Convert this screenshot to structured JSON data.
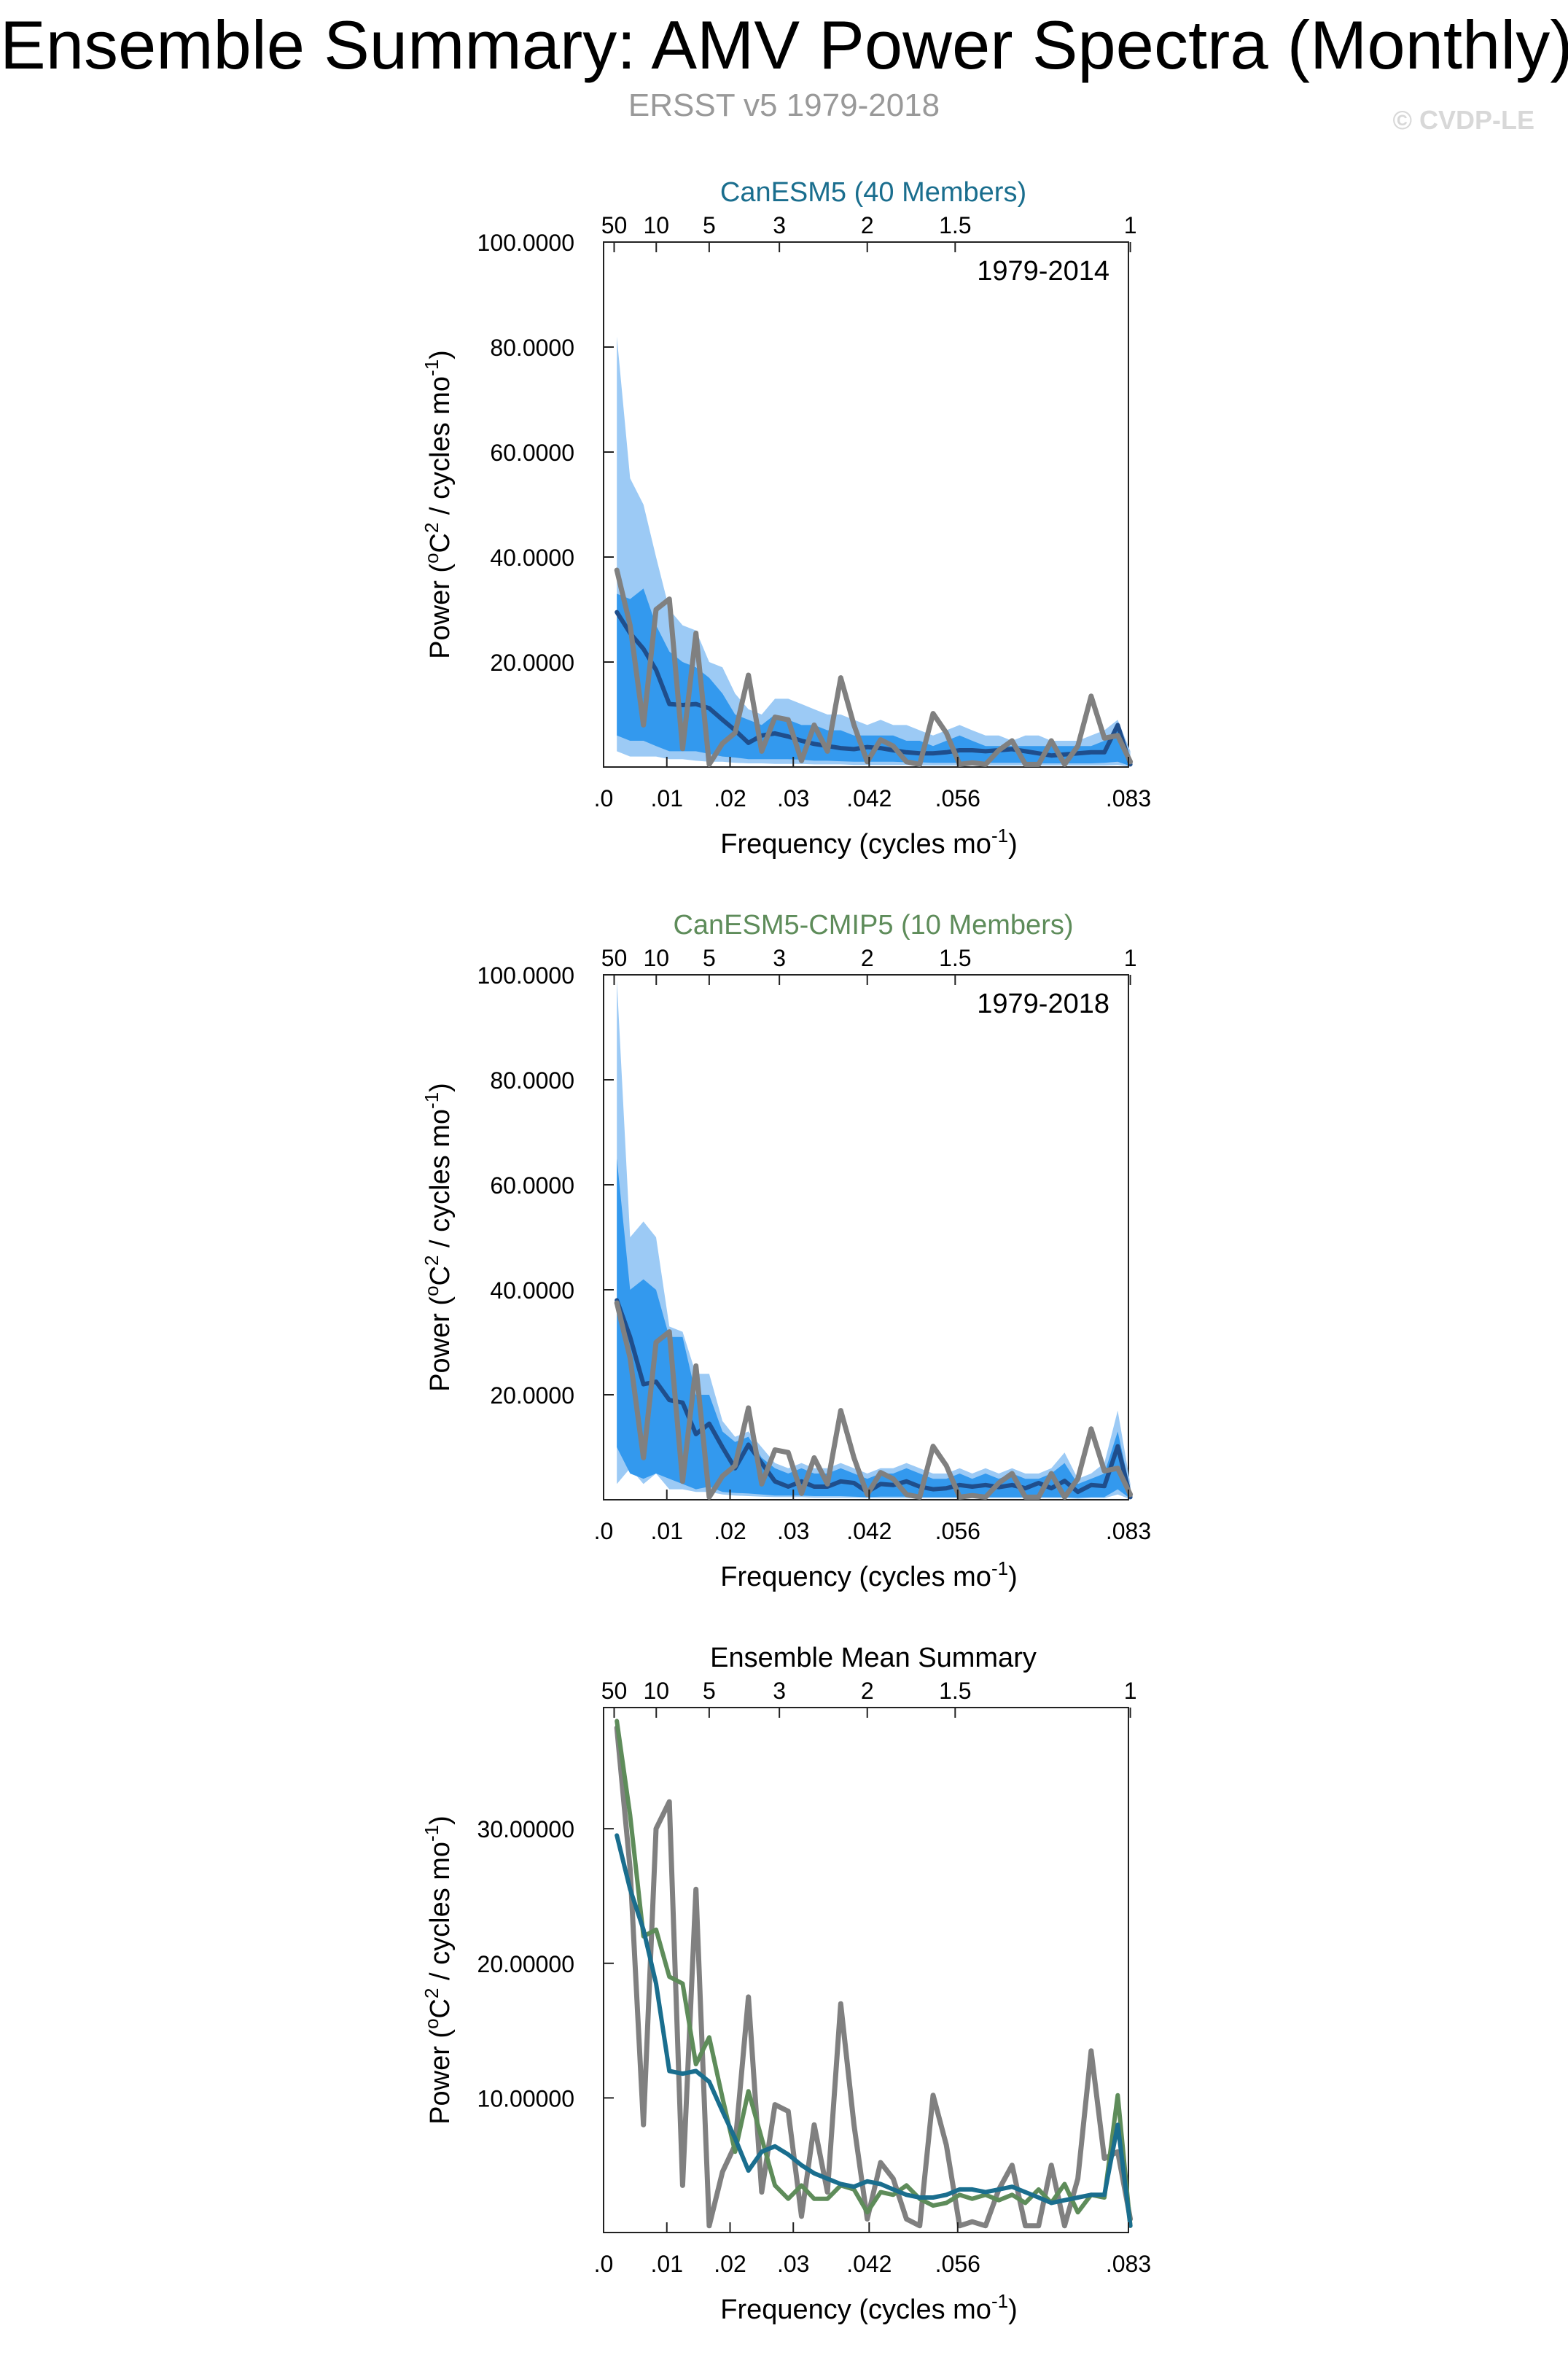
{
  "header": {
    "title": "Ensemble Summary: AMV Power Spectra (Monthly)",
    "subtitle": "ERSST v5 1979-2018",
    "watermark": "© CVDP-LE"
  },
  "colors": {
    "obs": "#808080",
    "mean_line": "#1f4e8c",
    "band_outer": "#9ccaf5",
    "band_inner": "#3399ee",
    "canesm5": "#1a6e8e",
    "canesm5_cmip5": "#5e8c5a"
  },
  "chart_data": [
    {
      "id": "canesm5",
      "type": "area",
      "title": "CanESM5 (40 Members)",
      "title_color": "#1a6e8e",
      "period": "1979-2014",
      "xlabel": "Frequency (cycles mo",
      "xlabel_sup": "-1",
      "ylabel": "Power (",
      "ylabel_sup_o": "o",
      "ylabel_mid": "C",
      "ylabel_sup_2": "2",
      "ylabel_end": " / cycles mo",
      "ylabel_sup_m1": "-1",
      "ylabel_close": ")",
      "xlim": [
        0,
        0.083
      ],
      "ylim": [
        0,
        100
      ],
      "yticks": [
        20,
        40,
        60,
        80,
        100
      ],
      "ytick_labels": [
        "20.0000",
        "40.0000",
        "60.0000",
        "80.0000",
        "100.0000"
      ],
      "xticks": [
        0,
        0.01,
        0.02,
        0.03,
        0.042,
        0.056,
        0.083
      ],
      "xtick_labels": [
        ".0",
        ".01",
        ".02",
        ".03",
        ".042",
        ".056",
        ".083"
      ],
      "top_ticks": [
        0.00167,
        0.00833,
        0.0167,
        0.0278,
        0.0417,
        0.0556,
        0.0833
      ],
      "top_tick_labels": [
        "50",
        "10",
        "5",
        "3",
        "2",
        "1.5",
        "1"
      ],
      "x": [
        0.0021,
        0.0042,
        0.0063,
        0.0083,
        0.0104,
        0.0125,
        0.0146,
        0.0167,
        0.0188,
        0.0208,
        0.0229,
        0.025,
        0.0271,
        0.0292,
        0.0313,
        0.0333,
        0.0354,
        0.0375,
        0.0396,
        0.0417,
        0.0438,
        0.0458,
        0.0479,
        0.05,
        0.0521,
        0.0542,
        0.0563,
        0.0583,
        0.0604,
        0.0625,
        0.0646,
        0.0667,
        0.0688,
        0.0708,
        0.0729,
        0.075,
        0.0771,
        0.0792,
        0.0813,
        0.0833
      ],
      "series": [
        {
          "name": "outer_upper",
          "values": [
            82,
            55,
            50,
            40,
            30,
            27,
            26,
            20,
            19,
            14,
            11,
            10,
            13,
            13,
            12,
            11,
            10,
            10,
            9,
            8,
            9,
            8,
            8,
            7,
            6,
            7,
            8,
            7,
            6,
            6,
            5,
            6,
            6,
            5,
            5,
            5,
            6,
            7,
            9,
            3
          ]
        },
        {
          "name": "inner_upper",
          "values": [
            33,
            32,
            34,
            27,
            22,
            20,
            19,
            17,
            14,
            10,
            9,
            8,
            10,
            9,
            8,
            8,
            7,
            7,
            6,
            6,
            6,
            6,
            5,
            5,
            4,
            5,
            6,
            5,
            4,
            4,
            4,
            4,
            4,
            4,
            4,
            4,
            4,
            5,
            7,
            2
          ]
        },
        {
          "name": "ensemble_mean",
          "values": [
            29.5,
            25.5,
            22.5,
            18.5,
            12,
            11.8,
            12,
            11.2,
            9,
            7,
            4.6,
            6,
            6.4,
            5.8,
            5,
            4.4,
            4,
            3.6,
            3.4,
            3.8,
            3.6,
            3.2,
            2.8,
            2.6,
            2.6,
            2.8,
            3.2,
            3.2,
            3,
            3.2,
            3.4,
            3,
            2.6,
            2.2,
            2.4,
            2.6,
            2.8,
            2.8,
            8,
            0.5
          ]
        },
        {
          "name": "inner_lower",
          "values": [
            6,
            5,
            5,
            4,
            3,
            3,
            3,
            2.5,
            2,
            1.8,
            1.5,
            1.5,
            1.5,
            1.5,
            1.4,
            1.2,
            1.2,
            1.1,
            1,
            1,
            1,
            1,
            0.9,
            0.9,
            0.8,
            0.8,
            0.8,
            0.8,
            0.8,
            0.8,
            0.8,
            0.8,
            0.7,
            0.7,
            0.7,
            0.7,
            0.7,
            0.8,
            1,
            0.2
          ]
        },
        {
          "name": "outer_lower",
          "values": [
            3,
            2,
            2,
            2,
            1.5,
            1.5,
            1.2,
            1,
            1,
            0.8,
            0.7,
            0.7,
            0.6,
            0.6,
            0.6,
            0.5,
            0.5,
            0.5,
            0.4,
            0.4,
            0.4,
            0.4,
            0.4,
            0.3,
            0.3,
            0.3,
            0.3,
            0.3,
            0.3,
            0.3,
            0.3,
            0.3,
            0.3,
            0.3,
            0.3,
            0.3,
            0.3,
            0.3,
            0.4,
            0.1
          ]
        },
        {
          "name": "ERSST v5",
          "values": [
            37.5,
            27,
            8,
            30,
            32,
            3.5,
            25.5,
            0.5,
            4.5,
            6.5,
            17.5,
            3,
            9.5,
            9,
            1.2,
            8,
            3,
            17,
            8,
            1,
            5.2,
            4,
            1,
            0.5,
            10.2,
            6.5,
            0.5,
            0.8,
            0.5,
            3.2,
            5,
            0.5,
            0.5,
            5,
            0.5,
            4,
            13.5,
            5.5,
            6,
            1
          ]
        }
      ]
    },
    {
      "id": "canesm5_cmip5",
      "type": "area",
      "title": "CanESM5-CMIP5 (10 Members)",
      "title_color": "#5e8c5a",
      "period": "1979-2018",
      "xlabel": "Frequency (cycles mo",
      "xlabel_sup": "-1",
      "ylabel": "Power (",
      "ylabel_sup_o": "o",
      "ylabel_mid": "C",
      "ylabel_sup_2": "2",
      "ylabel_end": " / cycles mo",
      "ylabel_sup_m1": "-1",
      "ylabel_close": ")",
      "xlim": [
        0,
        0.083
      ],
      "ylim": [
        0,
        100
      ],
      "yticks": [
        20,
        40,
        60,
        80,
        100
      ],
      "ytick_labels": [
        "20.0000",
        "40.0000",
        "60.0000",
        "80.0000",
        "100.0000"
      ],
      "xticks": [
        0,
        0.01,
        0.02,
        0.03,
        0.042,
        0.056,
        0.083
      ],
      "xtick_labels": [
        ".0",
        ".01",
        ".02",
        ".03",
        ".042",
        ".056",
        ".083"
      ],
      "top_ticks": [
        0.00167,
        0.00833,
        0.0167,
        0.0278,
        0.0417,
        0.0556,
        0.0833
      ],
      "top_tick_labels": [
        "50",
        "10",
        "5",
        "3",
        "2",
        "1.5",
        "1"
      ],
      "x": [
        0.0021,
        0.0042,
        0.0063,
        0.0083,
        0.0104,
        0.0125,
        0.0146,
        0.0167,
        0.0188,
        0.0208,
        0.0229,
        0.025,
        0.0271,
        0.0292,
        0.0313,
        0.0333,
        0.0354,
        0.0375,
        0.0396,
        0.0417,
        0.0438,
        0.0458,
        0.0479,
        0.05,
        0.0521,
        0.0542,
        0.0563,
        0.0583,
        0.0604,
        0.0625,
        0.0646,
        0.0667,
        0.0688,
        0.0708,
        0.0729,
        0.075,
        0.0771,
        0.0792,
        0.0813,
        0.0833
      ],
      "series": [
        {
          "name": "outer_upper",
          "values": [
            99,
            50,
            53,
            50,
            33,
            32,
            24,
            24,
            15,
            12,
            13,
            10,
            7,
            6,
            7,
            6,
            6,
            7,
            6,
            5,
            6,
            6,
            7,
            6,
            5,
            5,
            6,
            5,
            6,
            5,
            6,
            5,
            5,
            6,
            9,
            4,
            5,
            7,
            17,
            3
          ]
        },
        {
          "name": "inner_upper",
          "values": [
            65,
            40,
            42,
            40,
            31,
            31,
            20,
            20,
            13,
            11,
            12,
            8,
            6,
            5,
            6,
            5,
            5,
            6,
            5,
            4,
            5,
            5,
            6,
            5,
            4,
            4,
            5,
            4,
            5,
            4,
            5,
            4,
            4,
            5,
            7,
            3,
            4,
            5,
            13,
            2
          ]
        },
        {
          "name": "ensemble_mean",
          "values": [
            38,
            31,
            22,
            22.5,
            19,
            18.5,
            12.5,
            14.5,
            10,
            6,
            10.5,
            7,
            3.5,
            2.5,
            3.5,
            2.5,
            2.5,
            3.5,
            3.2,
            1.5,
            3,
            2.8,
            3.5,
            2.5,
            2,
            2.2,
            2.8,
            2.5,
            2.8,
            2.4,
            2.8,
            2.2,
            3.2,
            2.2,
            3.6,
            1.5,
            2.8,
            2.6,
            10.2,
            0.5
          ]
        },
        {
          "name": "inner_lower",
          "values": [
            10,
            5,
            4,
            5,
            4,
            3,
            2,
            2.5,
            1.5,
            1.3,
            1.2,
            1,
            0.8,
            0.8,
            0.8,
            0.7,
            0.7,
            0.7,
            0.6,
            0.5,
            0.6,
            0.6,
            0.6,
            0.5,
            0.5,
            0.5,
            0.5,
            0.5,
            0.5,
            0.5,
            0.5,
            0.5,
            0.5,
            0.5,
            0.5,
            0.4,
            0.5,
            0.5,
            2,
            0.2
          ]
        },
        {
          "name": "outer_lower",
          "values": [
            3,
            6,
            3,
            5,
            2,
            2,
            1.5,
            1.5,
            1,
            0.8,
            0.7,
            0.6,
            0.5,
            0.5,
            0.5,
            0.4,
            0.4,
            0.4,
            0.4,
            0.3,
            0.3,
            0.3,
            0.3,
            0.3,
            0.3,
            0.3,
            0.3,
            0.3,
            0.3,
            0.3,
            0.3,
            0.3,
            0.3,
            0.3,
            0.3,
            0.2,
            0.3,
            0.3,
            1,
            0.1
          ]
        },
        {
          "name": "ERSST v5",
          "values": [
            37.5,
            27,
            8,
            30,
            32,
            3.5,
            25.5,
            0.5,
            4.5,
            6.5,
            17.5,
            3,
            9.5,
            9,
            1.2,
            8,
            3,
            17,
            8,
            1,
            5.2,
            4,
            1,
            0.5,
            10.2,
            6.5,
            0.5,
            0.8,
            0.5,
            3.2,
            5,
            0.5,
            0.5,
            5,
            0.5,
            4,
            13.5,
            5.5,
            6,
            1
          ]
        }
      ]
    },
    {
      "id": "ensemble_mean_summary",
      "type": "line",
      "title": "Ensemble Mean Summary",
      "title_color": "#000000",
      "period": "",
      "xlabel": "Frequency (cycles mo",
      "xlabel_sup": "-1",
      "ylabel": "Power (",
      "ylabel_sup_o": "o",
      "ylabel_mid": "C",
      "ylabel_sup_2": "2",
      "ylabel_end": " / cycles mo",
      "ylabel_sup_m1": "-1",
      "ylabel_close": ")",
      "xlim": [
        0,
        0.083
      ],
      "ylim": [
        0,
        39
      ],
      "yticks": [
        10,
        20,
        30
      ],
      "ytick_labels": [
        "10.00000",
        "20.00000",
        "30.00000"
      ],
      "xticks": [
        0,
        0.01,
        0.02,
        0.03,
        0.042,
        0.056,
        0.083
      ],
      "xtick_labels": [
        ".0",
        ".01",
        ".02",
        ".03",
        ".042",
        ".056",
        ".083"
      ],
      "top_ticks": [
        0.00167,
        0.00833,
        0.0167,
        0.0278,
        0.0417,
        0.0556,
        0.0833
      ],
      "top_tick_labels": [
        "50",
        "10",
        "5",
        "3",
        "2",
        "1.5",
        "1"
      ],
      "x": [
        0.0021,
        0.0042,
        0.0063,
        0.0083,
        0.0104,
        0.0125,
        0.0146,
        0.0167,
        0.0188,
        0.0208,
        0.0229,
        0.025,
        0.0271,
        0.0292,
        0.0313,
        0.0333,
        0.0354,
        0.0375,
        0.0396,
        0.0417,
        0.0438,
        0.0458,
        0.0479,
        0.05,
        0.0521,
        0.0542,
        0.0563,
        0.0583,
        0.0604,
        0.0625,
        0.0646,
        0.0667,
        0.0688,
        0.0708,
        0.0729,
        0.075,
        0.0771,
        0.0792,
        0.0813,
        0.0833
      ],
      "series": [
        {
          "name": "ERSST v5",
          "values": [
            37.5,
            27,
            8,
            30,
            32,
            3.5,
            25.5,
            0.5,
            4.5,
            6.5,
            17.5,
            3,
            9.5,
            9,
            1.2,
            8,
            3,
            17,
            8,
            1,
            5.2,
            4,
            1,
            0.5,
            10.2,
            6.5,
            0.5,
            0.8,
            0.5,
            3.2,
            5,
            0.5,
            0.5,
            5,
            0.5,
            4,
            13.5,
            5.5,
            6,
            1
          ]
        },
        {
          "name": "CanESM5-CMIP5",
          "values": [
            38,
            31,
            22,
            22.5,
            19,
            18.5,
            12.5,
            14.5,
            10,
            6,
            10.5,
            7,
            3.5,
            2.5,
            3.5,
            2.5,
            2.5,
            3.5,
            3.2,
            1.5,
            3,
            2.8,
            3.5,
            2.5,
            2,
            2.2,
            2.8,
            2.5,
            2.8,
            2.4,
            2.8,
            2.2,
            3.2,
            2.2,
            3.6,
            1.5,
            2.8,
            2.6,
            10.2,
            0.5
          ]
        },
        {
          "name": "CanESM5",
          "values": [
            29.5,
            25.5,
            22.5,
            18.5,
            12,
            11.8,
            12,
            11.2,
            9,
            7,
            4.6,
            6,
            6.4,
            5.8,
            5,
            4.4,
            4,
            3.6,
            3.4,
            3.8,
            3.6,
            3.2,
            2.8,
            2.6,
            2.6,
            2.8,
            3.2,
            3.2,
            3,
            3.2,
            3.4,
            3,
            2.6,
            2.2,
            2.4,
            2.6,
            2.8,
            2.8,
            8,
            0.5
          ]
        }
      ]
    }
  ]
}
